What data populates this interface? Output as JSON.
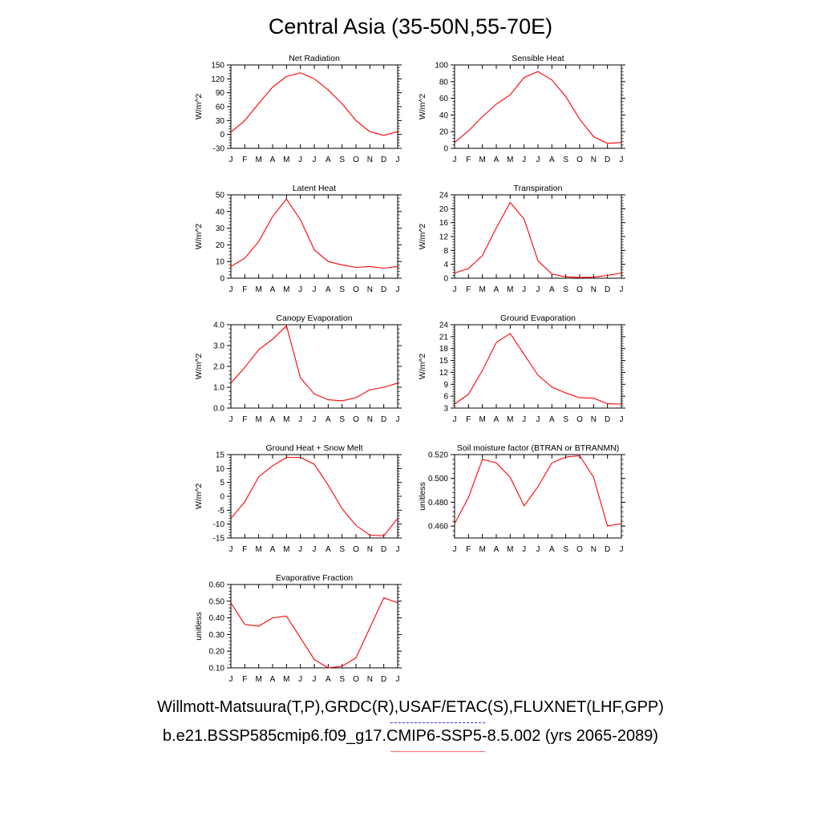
{
  "title": "Central Asia (35-50N,55-70E)",
  "colors": {
    "series": "#ff0000",
    "axis": "#000000",
    "obs_legend": "#3333ff",
    "model_legend": "#ff6666"
  },
  "legend": {
    "obs_label": "Willmott-Matsuura(T,P),GRDC(R),USAF/ETAC(S),FLUXNET(LHF,GPP)",
    "model_label": "b.e21.BSSP585cmip6.f09_g17.CMIP6-SSP5-8.5.002 (yrs 2065-2089)"
  },
  "chart_data": [
    {
      "type": "line",
      "title": "Net Radiation",
      "ylabel": "W/m^2",
      "x": [
        "J",
        "F",
        "M",
        "A",
        "M",
        "J",
        "J",
        "A",
        "S",
        "O",
        "N",
        "D",
        "J"
      ],
      "ylim": [
        -30,
        150
      ],
      "yticks": [
        "-30",
        "0",
        "30",
        "60",
        "90",
        "120",
        "150"
      ],
      "values": [
        5,
        30,
        67,
        102,
        125,
        133,
        120,
        96,
        66,
        30,
        6,
        -2,
        6
      ]
    },
    {
      "type": "line",
      "title": "Sensible Heat",
      "ylabel": "W/m^2",
      "x": [
        "J",
        "F",
        "M",
        "A",
        "M",
        "J",
        "J",
        "A",
        "S",
        "O",
        "N",
        "D",
        "J"
      ],
      "ylim": [
        0,
        100
      ],
      "yticks": [
        "0",
        "20",
        "40",
        "60",
        "80",
        "100"
      ],
      "values": [
        7,
        21,
        38,
        53,
        64,
        85,
        92,
        82,
        62,
        35,
        14,
        6,
        7
      ]
    },
    {
      "type": "line",
      "title": "Latent Heat",
      "ylabel": "W/m^2",
      "x": [
        "J",
        "F",
        "M",
        "A",
        "M",
        "J",
        "J",
        "A",
        "S",
        "O",
        "N",
        "D",
        "J"
      ],
      "ylim": [
        0,
        50
      ],
      "yticks": [
        "0",
        "10",
        "20",
        "30",
        "40",
        "50"
      ],
      "values": [
        7,
        12,
        22,
        37,
        47.5,
        35,
        17,
        10,
        8,
        6.5,
        7,
        6,
        7
      ]
    },
    {
      "type": "line",
      "title": "Transpiration",
      "ylabel": "W/m^2",
      "x": [
        "J",
        "F",
        "M",
        "A",
        "M",
        "J",
        "J",
        "A",
        "S",
        "O",
        "N",
        "D",
        "J"
      ],
      "ylim": [
        0,
        24
      ],
      "yticks": [
        "0",
        "4",
        "8",
        "12",
        "16",
        "20",
        "24"
      ],
      "values": [
        1.5,
        2.8,
        6.5,
        14.5,
        21.8,
        17,
        5,
        1.2,
        0.4,
        0.2,
        0.3,
        0.8,
        1.5
      ]
    },
    {
      "type": "line",
      "title": "Canopy Evaporation",
      "ylabel": "W/m^2",
      "x": [
        "J",
        "F",
        "M",
        "A",
        "M",
        "J",
        "J",
        "A",
        "S",
        "O",
        "N",
        "D",
        "J"
      ],
      "ylim": [
        0,
        4
      ],
      "yticks": [
        "0.0",
        "1.0",
        "2.0",
        "3.0",
        "4.0"
      ],
      "values": [
        1.2,
        1.95,
        2.8,
        3.3,
        3.95,
        1.45,
        0.68,
        0.4,
        0.35,
        0.5,
        0.88,
        1.0,
        1.2
      ]
    },
    {
      "type": "line",
      "title": "Ground Evaporation",
      "ylabel": "W/m^2",
      "x": [
        "J",
        "F",
        "M",
        "A",
        "M",
        "J",
        "J",
        "A",
        "S",
        "O",
        "N",
        "D",
        "J"
      ],
      "ylim": [
        3,
        24
      ],
      "yticks": [
        "3",
        "6",
        "9",
        "12",
        "15",
        "18",
        "21",
        "24"
      ],
      "values": [
        4,
        6.5,
        12.5,
        19.5,
        21.8,
        16.5,
        11.3,
        8.3,
        6.8,
        5.6,
        5.5,
        4.1,
        4.0
      ]
    },
    {
      "type": "line",
      "title": "Ground Heat + Snow Melt",
      "ylabel": "W/m^2",
      "x": [
        "J",
        "F",
        "M",
        "A",
        "M",
        "J",
        "J",
        "A",
        "S",
        "O",
        "N",
        "D",
        "J"
      ],
      "ylim": [
        -15,
        15
      ],
      "yticks": [
        "-15",
        "-10",
        "-5",
        "0",
        "5",
        "10",
        "15"
      ],
      "values": [
        -8,
        -2,
        7,
        11,
        14,
        14,
        11.5,
        4,
        -4.5,
        -10.5,
        -14,
        -14.2,
        -8
      ]
    },
    {
      "type": "line",
      "title": "Soil moisture factor (BTRAN or BTRANMN)",
      "ylabel": "unitless",
      "x": [
        "J",
        "F",
        "M",
        "A",
        "M",
        "J",
        "J",
        "A",
        "S",
        "O",
        "N",
        "D",
        "J"
      ],
      "ylim": [
        0.45,
        0.52
      ],
      "yticks": [
        "0.460",
        "0.480",
        "0.500",
        "0.520"
      ],
      "values": [
        0.462,
        0.484,
        0.516,
        0.513,
        0.501,
        0.477,
        0.493,
        0.513,
        0.518,
        0.519,
        0.501,
        0.46,
        0.462
      ]
    },
    {
      "type": "line",
      "title": "Evaporative Fraction",
      "ylabel": "unitless",
      "x": [
        "J",
        "F",
        "M",
        "A",
        "M",
        "J",
        "J",
        "A",
        "S",
        "O",
        "N",
        "D",
        "J"
      ],
      "ylim": [
        0.1,
        0.6
      ],
      "yticks": [
        "0.10",
        "0.20",
        "0.30",
        "0.40",
        "0.50",
        "0.60"
      ],
      "values": [
        0.49,
        0.36,
        0.35,
        0.4,
        0.41,
        0.28,
        0.15,
        0.1,
        0.11,
        0.16,
        0.34,
        0.52,
        0.49
      ]
    }
  ]
}
